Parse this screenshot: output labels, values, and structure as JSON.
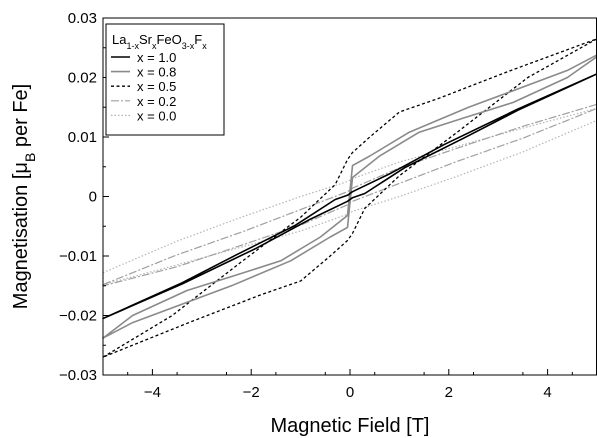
{
  "chart_data": {
    "type": "line",
    "xlabel": "Magnetic Field [T]",
    "ylabel_parts": [
      "Magnetisation [μ",
      "B",
      " per Fe]"
    ],
    "xlim": [
      -5,
      5
    ],
    "ylim": [
      -0.03,
      0.03
    ],
    "xticks": [
      -4,
      -2,
      0,
      2,
      4
    ],
    "xtick_labels": [
      "−4",
      "−2",
      "0",
      "2",
      "4"
    ],
    "yticks": [
      -0.03,
      -0.02,
      -0.01,
      0,
      0.01,
      0.02,
      0.03
    ],
    "ytick_labels": [
      "−0.03",
      "−0.02",
      "−0.01",
      "0",
      "0.01",
      "0.02",
      "0.03"
    ],
    "grid": false,
    "legend_position": "top-left",
    "legend_title_parts": [
      {
        "t": "La",
        "s": "n"
      },
      {
        "t": "1-x",
        "s": "sub"
      },
      {
        "t": "Sr",
        "s": "n"
      },
      {
        "t": "x",
        "s": "sub"
      },
      {
        "t": "FeO",
        "s": "n"
      },
      {
        "t": "3-x",
        "s": "sub"
      },
      {
        "t": "F",
        "s": "n"
      },
      {
        "t": "x",
        "s": "sub"
      }
    ],
    "series": [
      {
        "name": "x = 1.0",
        "color": "#000000",
        "dash": "",
        "width": 1.6,
        "upper": [
          [
            -5,
            -0.0205
          ],
          [
            -3.4,
            -0.0145
          ],
          [
            -2.3,
            -0.0098
          ],
          [
            -1.1,
            -0.0048
          ],
          [
            -0.3,
            -0.0005
          ],
          [
            -0.05,
            0.0002
          ],
          [
            0.05,
            0.0008
          ],
          [
            0.8,
            0.0038
          ],
          [
            1.9,
            0.0087
          ],
          [
            3.4,
            0.0147
          ],
          [
            5,
            0.0206
          ]
        ],
        "lower": [
          [
            -5,
            -0.0205
          ],
          [
            -3.4,
            -0.0147
          ],
          [
            -1.9,
            -0.0087
          ],
          [
            -0.8,
            -0.0038
          ],
          [
            -0.05,
            -0.0008
          ],
          [
            0.05,
            -0.0002
          ],
          [
            0.3,
            0.0005
          ],
          [
            1.1,
            0.0048
          ],
          [
            2.3,
            0.0098
          ],
          [
            3.4,
            0.0145
          ],
          [
            5,
            0.0206
          ]
        ]
      },
      {
        "name": "x = 0.8",
        "color": "#8a8a8a",
        "dash": "",
        "width": 1.6,
        "upper": [
          [
            -5,
            -0.0238
          ],
          [
            -4.4,
            -0.0212
          ],
          [
            -2.4,
            -0.015
          ],
          [
            -1.2,
            -0.0108
          ],
          [
            -0.4,
            -0.0068
          ],
          [
            -0.05,
            -0.0052
          ],
          [
            0.05,
            0.0032
          ],
          [
            0.6,
            0.0068
          ],
          [
            1.4,
            0.0108
          ],
          [
            2.3,
            0.0132
          ],
          [
            3.3,
            0.0158
          ],
          [
            4.4,
            0.02
          ],
          [
            5,
            0.0235
          ]
        ],
        "lower": [
          [
            -5,
            -0.0238
          ],
          [
            -4.4,
            -0.02
          ],
          [
            -3.3,
            -0.0158
          ],
          [
            -2.3,
            -0.0132
          ],
          [
            -1.4,
            -0.0108
          ],
          [
            -0.6,
            -0.0068
          ],
          [
            -0.05,
            -0.0032
          ],
          [
            0.05,
            0.0052
          ],
          [
            0.4,
            0.0068
          ],
          [
            1.2,
            0.0108
          ],
          [
            2.4,
            0.015
          ],
          [
            4.4,
            0.0212
          ],
          [
            5,
            0.0238
          ]
        ]
      },
      {
        "name": "x = 0.5",
        "color": "#000000",
        "dash": "3,2.5",
        "width": 1.3,
        "upper": [
          [
            -5,
            -0.027
          ],
          [
            -3.6,
            -0.02
          ],
          [
            -2.2,
            -0.011
          ],
          [
            -1.0,
            -0.0035
          ],
          [
            -0.3,
            0.002
          ],
          [
            -0.05,
            0.0062
          ],
          [
            0.05,
            0.0074
          ],
          [
            0.4,
            0.01
          ],
          [
            1.0,
            0.0142
          ],
          [
            1.8,
            0.0165
          ],
          [
            3.2,
            0.021
          ],
          [
            5,
            0.0265
          ]
        ],
        "lower": [
          [
            -5,
            -0.027
          ],
          [
            -3.2,
            -0.021
          ],
          [
            -1.8,
            -0.0165
          ],
          [
            -1.0,
            -0.0142
          ],
          [
            -0.4,
            -0.01
          ],
          [
            -0.05,
            -0.0074
          ],
          [
            0.05,
            -0.0062
          ],
          [
            0.3,
            -0.002
          ],
          [
            1.0,
            0.0035
          ],
          [
            2.2,
            0.011
          ],
          [
            3.6,
            0.02
          ],
          [
            5,
            0.0265
          ]
        ]
      },
      {
        "name": "x = 0.2",
        "color": "#a0a0a0",
        "dash": "8,2,2,2",
        "width": 1.2,
        "upper": [
          [
            -5,
            -0.0148
          ],
          [
            -3.5,
            -0.0098
          ],
          [
            -2.2,
            -0.006
          ],
          [
            -1.0,
            -0.0022
          ],
          [
            -0.05,
            0.0008
          ],
          [
            0.05,
            0.0014
          ],
          [
            1.0,
            0.0048
          ],
          [
            2.2,
            0.0082
          ],
          [
            3.5,
            0.0118
          ],
          [
            5,
            0.0155
          ]
        ],
        "lower": [
          [
            -5,
            -0.015
          ],
          [
            -3.5,
            -0.0118
          ],
          [
            -2.2,
            -0.0082
          ],
          [
            -1.0,
            -0.0048
          ],
          [
            -0.05,
            -0.0014
          ],
          [
            0.05,
            -0.0008
          ],
          [
            1.0,
            0.0022
          ],
          [
            2.2,
            0.006
          ],
          [
            3.5,
            0.0098
          ],
          [
            5,
            0.0148
          ]
        ]
      },
      {
        "name": "x = 0.0",
        "color": "#b4b4b4",
        "dash": "1.5,2",
        "width": 1.2,
        "upper": [
          [
            -5,
            -0.0128
          ],
          [
            -3.5,
            -0.0075
          ],
          [
            -2.2,
            -0.0035
          ],
          [
            -1.0,
            0.0
          ],
          [
            -0.05,
            0.0025
          ],
          [
            0.05,
            0.003
          ],
          [
            1.0,
            0.0058
          ],
          [
            2.2,
            0.0085
          ],
          [
            3.5,
            0.0115
          ],
          [
            5,
            0.0148
          ]
        ],
        "lower": [
          [
            -5,
            -0.0148
          ],
          [
            -3.5,
            -0.0115
          ],
          [
            -2.2,
            -0.0085
          ],
          [
            -1.0,
            -0.0058
          ],
          [
            -0.05,
            -0.003
          ],
          [
            0.05,
            -0.0025
          ],
          [
            1.0,
            0.0
          ],
          [
            2.2,
            0.0035
          ],
          [
            3.5,
            0.0075
          ],
          [
            5,
            0.0128
          ]
        ]
      }
    ]
  }
}
